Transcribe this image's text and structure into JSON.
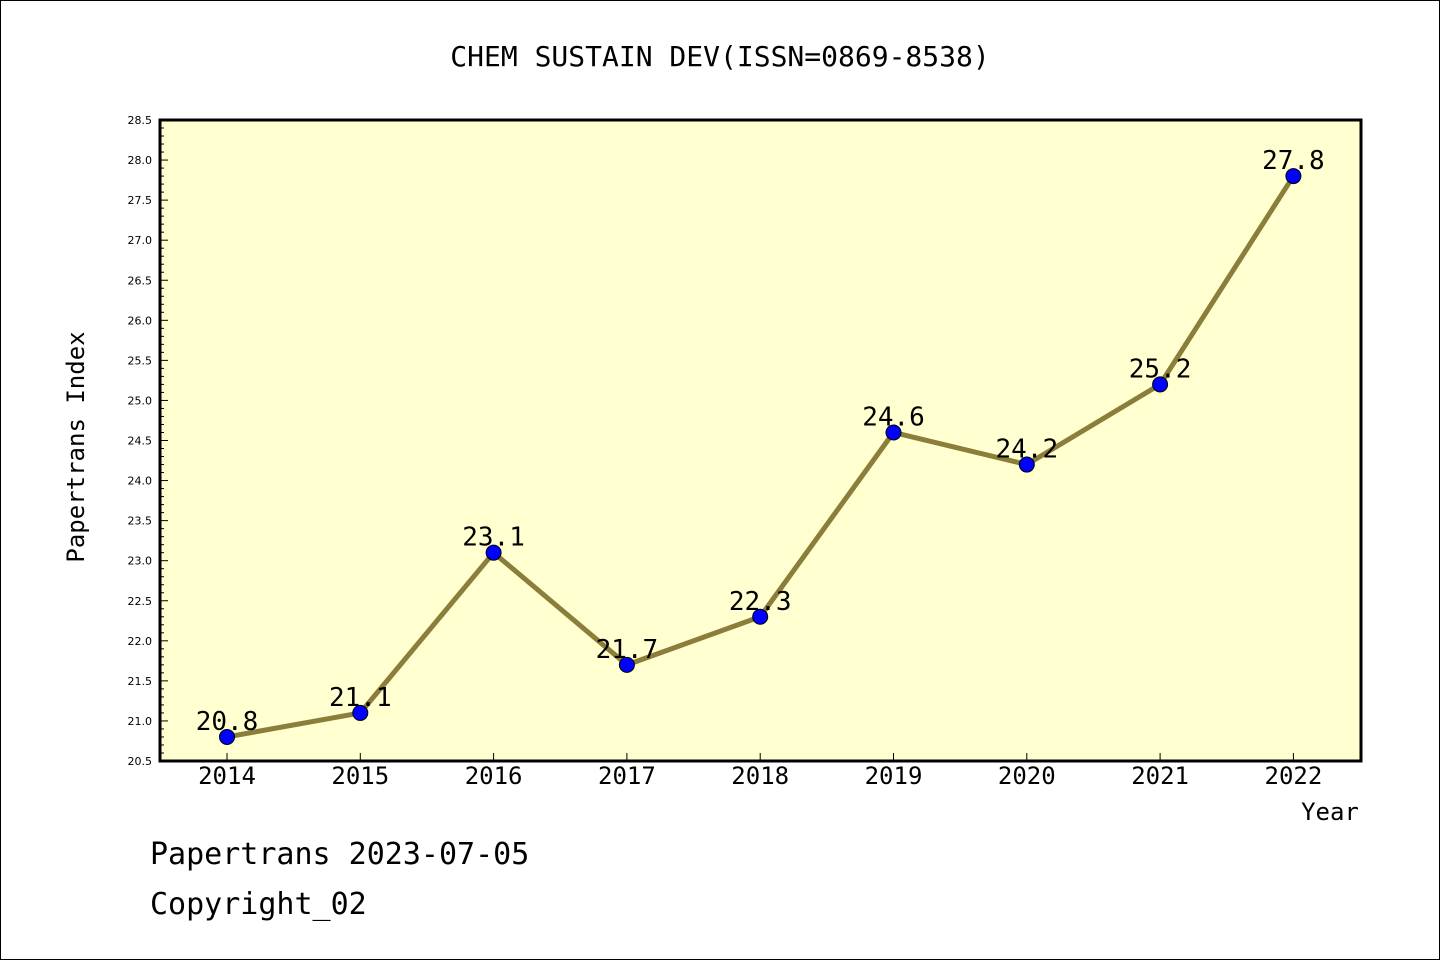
{
  "chart_data": {
    "type": "line",
    "title": "CHEM SUSTAIN DEV(ISSN=0869-8538)",
    "xlabel": "Year",
    "ylabel": "Papertrans Index",
    "categories": [
      "2014",
      "2015",
      "2016",
      "2017",
      "2018",
      "2019",
      "2020",
      "2021",
      "2022"
    ],
    "values": [
      20.8,
      21.1,
      23.1,
      21.7,
      22.3,
      24.6,
      24.2,
      25.2,
      27.8
    ],
    "data_labels": [
      "20.8",
      "21.1",
      "23.1",
      "21.7",
      "22.3",
      "24.6",
      "24.2",
      "25.2",
      "27.8"
    ],
    "ylim": [
      20.5,
      28.5
    ],
    "y_ticks": [
      "20.5",
      "21.0",
      "21.5",
      "22.0",
      "22.5",
      "23.0",
      "23.5",
      "24.0",
      "24.5",
      "25.0",
      "25.5",
      "26.0",
      "26.5",
      "27.0",
      "27.5",
      "28.0",
      "28.5"
    ],
    "grid": false,
    "line_color": "#8b7d3a",
    "marker_color": "#0000ff",
    "plot_background": "#ffffd0"
  },
  "footer": {
    "date_line": "Papertrans 2023-07-05",
    "copyright": "Copyright_02"
  }
}
